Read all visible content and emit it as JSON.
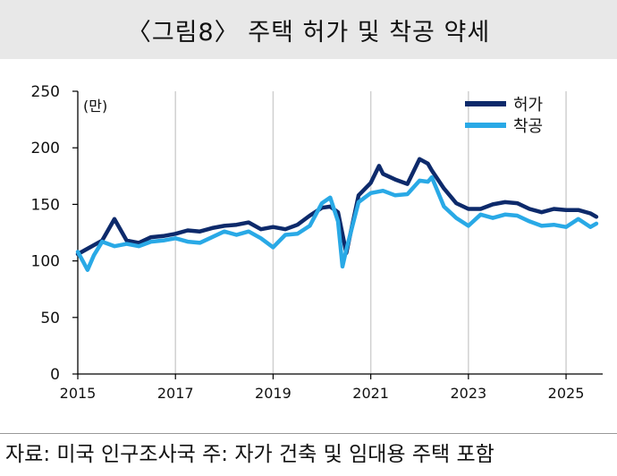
{
  "title": "〈그림8〉 주택 허가 및 착공 약세",
  "source_note": "자료: 미국 인구조사국 주: 자가 건축 및 임대용 주택 포함",
  "colors": {
    "permits": "#0d2a6b",
    "starts": "#29a9e6",
    "grid": "#d0d0d0",
    "axis": "#000000"
  },
  "chart_data": {
    "type": "line",
    "unit_label": "(만)",
    "ylim": [
      0,
      250
    ],
    "yticks": [
      0,
      50,
      100,
      150,
      200,
      250
    ],
    "xlim": [
      2015.0,
      2025.75
    ],
    "xticks": [
      2015,
      2017,
      2019,
      2021,
      2023,
      2025
    ],
    "grid": true,
    "legend": "top-right",
    "series": [
      {
        "name": "허가",
        "color": "#0d2a6b",
        "x": [
          2015.0,
          2015.25,
          2015.5,
          2015.75,
          2016.0,
          2016.25,
          2016.5,
          2016.75,
          2017.0,
          2017.25,
          2017.5,
          2017.75,
          2018.0,
          2018.25,
          2018.5,
          2018.75,
          2019.0,
          2019.25,
          2019.5,
          2019.75,
          2020.0,
          2020.17,
          2020.33,
          2020.5,
          2020.75,
          2021.0,
          2021.17,
          2021.25,
          2021.5,
          2021.75,
          2022.0,
          2022.17,
          2022.25,
          2022.5,
          2022.75,
          2023.0,
          2023.25,
          2023.5,
          2023.75,
          2024.0,
          2024.25,
          2024.5,
          2024.75,
          2025.0,
          2025.25,
          2025.5,
          2025.62
        ],
        "values": [
          106,
          112,
          118,
          137,
          118,
          116,
          121,
          122,
          124,
          127,
          126,
          129,
          131,
          132,
          134,
          128,
          130,
          128,
          132,
          140,
          147,
          148,
          143,
          107,
          158,
          169,
          184,
          177,
          172,
          168,
          190,
          186,
          180,
          164,
          151,
          146,
          146,
          150,
          152,
          151,
          146,
          143,
          146,
          145,
          145,
          142,
          139
        ]
      },
      {
        "name": "착공",
        "color": "#29a9e6",
        "x": [
          2015.0,
          2015.1,
          2015.2,
          2015.33,
          2015.5,
          2015.75,
          2016.0,
          2016.25,
          2016.5,
          2016.75,
          2017.0,
          2017.25,
          2017.5,
          2017.75,
          2018.0,
          2018.25,
          2018.5,
          2018.75,
          2019.0,
          2019.25,
          2019.5,
          2019.75,
          2020.0,
          2020.17,
          2020.33,
          2020.42,
          2020.5,
          2020.75,
          2021.0,
          2021.25,
          2021.5,
          2021.75,
          2022.0,
          2022.17,
          2022.25,
          2022.5,
          2022.75,
          2023.0,
          2023.25,
          2023.5,
          2023.75,
          2024.0,
          2024.25,
          2024.5,
          2024.75,
          2025.0,
          2025.25,
          2025.5,
          2025.62
        ],
        "values": [
          108,
          100,
          92,
          105,
          117,
          113,
          115,
          113,
          117,
          118,
          120,
          117,
          116,
          121,
          126,
          123,
          126,
          120,
          112,
          123,
          124,
          131,
          151,
          156,
          135,
          95,
          110,
          152,
          160,
          162,
          158,
          159,
          171,
          170,
          174,
          148,
          138,
          131,
          141,
          138,
          141,
          140,
          135,
          131,
          132,
          130,
          137,
          130,
          133
        ]
      }
    ]
  }
}
